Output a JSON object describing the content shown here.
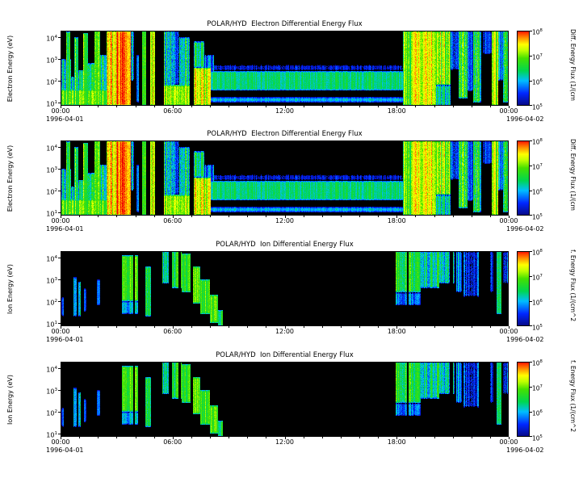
{
  "figure": {
    "panels": [
      {
        "title": "POLAR/HYD  Electron Differential Energy Flux",
        "ylabel": "Electron Energy (eV)",
        "y_ticks": [
          {
            "base": "10",
            "exp": "4"
          },
          {
            "base": "10",
            "exp": "3"
          },
          {
            "base": "10",
            "exp": "2"
          },
          {
            "base": "10",
            "exp": "1"
          }
        ],
        "x_ticks": [
          "00:00",
          "06:00",
          "12:00",
          "18:00",
          "00:00"
        ],
        "date_start": "1996-04-01",
        "date_end": "1996-04-02",
        "colorbar_ticks": [
          {
            "base": "10",
            "exp": "8"
          },
          {
            "base": "10",
            "exp": "7"
          },
          {
            "base": "10",
            "exp": "6"
          },
          {
            "base": "10",
            "exp": "5"
          }
        ],
        "colorbar_label": "Diff. Energy Flux (1/(cm",
        "chart_index": 0
      },
      {
        "title": "POLAR/HYD  Electron Differential Energy Flux",
        "ylabel": "Electron Energy (eV)",
        "y_ticks": [
          {
            "base": "10",
            "exp": "4"
          },
          {
            "base": "10",
            "exp": "3"
          },
          {
            "base": "10",
            "exp": "2"
          },
          {
            "base": "10",
            "exp": "1"
          }
        ],
        "x_ticks": [
          "00:00",
          "06:00",
          "12:00",
          "18:00",
          "00:00"
        ],
        "date_start": "1996-04-01",
        "date_end": "1996-04-02",
        "colorbar_ticks": [
          {
            "base": "10",
            "exp": "8"
          },
          {
            "base": "10",
            "exp": "7"
          },
          {
            "base": "10",
            "exp": "6"
          },
          {
            "base": "10",
            "exp": "5"
          }
        ],
        "colorbar_label": "Diff. Energy Flux (1/(cm",
        "chart_index": 0
      },
      {
        "title": "POLAR/HYD  Ion Differential Energy Flux",
        "ylabel": "Ion Energy (eV)",
        "y_ticks": [
          {
            "base": "10",
            "exp": "4"
          },
          {
            "base": "10",
            "exp": "3"
          },
          {
            "base": "10",
            "exp": "2"
          },
          {
            "base": "10",
            "exp": "1"
          }
        ],
        "x_ticks": [
          "00:00",
          "06:00",
          "12:00",
          "18:00",
          "00:00"
        ],
        "date_start": "1996-04-01",
        "date_end": "1996-04-02",
        "colorbar_ticks": [
          {
            "base": "10",
            "exp": "8"
          },
          {
            "base": "10",
            "exp": "7"
          },
          {
            "base": "10",
            "exp": "6"
          },
          {
            "base": "10",
            "exp": "5"
          }
        ],
        "colorbar_label": "f. Energy Flux (1/(cm^2",
        "chart_index": 1
      },
      {
        "title": "POLAR/HYD  Ion Differential Energy Flux",
        "ylabel": "Ion Energy (eV)",
        "y_ticks": [
          {
            "base": "10",
            "exp": "4"
          },
          {
            "base": "10",
            "exp": "3"
          },
          {
            "base": "10",
            "exp": "2"
          },
          {
            "base": "10",
            "exp": "1"
          }
        ],
        "x_ticks": [
          "00:00",
          "06:00",
          "12:00",
          "18:00",
          "00:00"
        ],
        "date_start": "1996-04-01",
        "date_end": "1996-04-02",
        "colorbar_ticks": [
          {
            "base": "10",
            "exp": "8"
          },
          {
            "base": "10",
            "exp": "7"
          },
          {
            "base": "10",
            "exp": "6"
          },
          {
            "base": "10",
            "exp": "5"
          }
        ],
        "colorbar_label": "f. Energy Flux (1/(cm^2",
        "chart_index": 1
      }
    ]
  },
  "colormap": {
    "below_min_color": "#000000",
    "stops": [
      {
        "v": 5.0,
        "color": "#080882"
      },
      {
        "v": 5.5,
        "color": "#0028ff"
      },
      {
        "v": 6.0,
        "color": "#00beff"
      },
      {
        "v": 6.4,
        "color": "#00d750"
      },
      {
        "v": 6.9,
        "color": "#46e100"
      },
      {
        "v": 7.2,
        "color": "#beff00"
      },
      {
        "v": 7.45,
        "color": "#ffff00"
      },
      {
        "v": 7.7,
        "color": "#ff9600"
      },
      {
        "v": 7.9,
        "color": "#ff3c00"
      },
      {
        "v": 8.0,
        "color": "#eb0000"
      }
    ]
  },
  "chart_data": [
    {
      "type": "heatmap",
      "title": "POLAR/HYD  Electron Differential Energy Flux",
      "x_axis": {
        "range_hours": [
          0,
          24
        ],
        "ticks": [
          "00:00",
          "06:00",
          "12:00",
          "18:00",
          "00:00"
        ],
        "date_start": "1996-04-01",
        "date_end": "1996-04-02"
      },
      "y_axis": {
        "label": "Electron Energy (eV)",
        "scale": "log",
        "range_log10_eV": [
          0.85,
          4.3
        ],
        "ticks_log10": [
          1,
          2,
          3,
          4
        ]
      },
      "z_axis": {
        "label": "Diff. Energy Flux (1/(cm",
        "scale": "log",
        "range_log10": [
          5,
          8
        ],
        "ticks_log10": [
          5,
          6,
          7,
          8
        ]
      },
      "background_log10_flux": 0,
      "feature_format": "t=[start_hr,end_hr], e=[log10_eV_min,log10_eV_max], v=log10_flux, n=noise_amplitude",
      "features": [
        {
          "t": [
            0.0,
            0.55
          ],
          "e": [
            1.05,
            3.0
          ],
          "v": 6.2,
          "n": 0.7
        },
        {
          "t": [
            0.0,
            2.45
          ],
          "e": [
            0.85,
            1.6
          ],
          "v": 6.9,
          "n": 0.5
        },
        {
          "t": [
            0.3,
            0.5
          ],
          "e": [
            1.0,
            4.25
          ],
          "v": 6.6,
          "n": 0.5
        },
        {
          "t": [
            0.55,
            0.75
          ],
          "e": [
            1.0,
            2.2
          ],
          "v": 6.0,
          "n": 0.6
        },
        {
          "t": [
            0.75,
            0.95
          ],
          "e": [
            1.0,
            4.0
          ],
          "v": 6.7,
          "n": 0.6
        },
        {
          "t": [
            0.95,
            1.2
          ],
          "e": [
            1.0,
            2.5
          ],
          "v": 6.2,
          "n": 0.6
        },
        {
          "t": [
            1.2,
            1.45
          ],
          "e": [
            1.0,
            4.2
          ],
          "v": 6.8,
          "n": 0.6
        },
        {
          "t": [
            1.45,
            1.8
          ],
          "e": [
            1.0,
            2.8
          ],
          "v": 6.3,
          "n": 0.7
        },
        {
          "t": [
            1.8,
            2.1
          ],
          "e": [
            1.0,
            4.3
          ],
          "v": 6.9,
          "n": 0.6
        },
        {
          "t": [
            2.1,
            2.45
          ],
          "e": [
            1.0,
            3.2
          ],
          "v": 6.4,
          "n": 0.7
        },
        {
          "t": [
            2.45,
            3.0
          ],
          "e": [
            0.85,
            4.3
          ],
          "v": 7.4,
          "n": 0.5
        },
        {
          "t": [
            3.0,
            3.75
          ],
          "e": [
            0.85,
            4.3
          ],
          "v": 7.8,
          "n": 0.35
        },
        {
          "t": [
            3.75,
            3.95
          ],
          "e": [
            2.0,
            4.3
          ],
          "v": 5.9,
          "n": 0.8
        },
        {
          "t": [
            4.05,
            4.18
          ],
          "e": [
            1.0,
            3.2
          ],
          "v": 5.7,
          "n": 0.5
        },
        {
          "t": [
            4.35,
            4.58
          ],
          "e": [
            0.85,
            4.3
          ],
          "v": 7.0,
          "n": 0.5
        },
        {
          "t": [
            4.78,
            5.05
          ],
          "e": [
            0.85,
            4.3
          ],
          "v": 7.3,
          "n": 0.45
        },
        {
          "t": [
            5.55,
            6.1
          ],
          "e": [
            0.85,
            4.3
          ],
          "v": 6.3,
          "n": 0.8
        },
        {
          "t": [
            5.55,
            6.9
          ],
          "e": [
            0.85,
            1.8
          ],
          "v": 7.2,
          "n": 0.5
        },
        {
          "t": [
            6.1,
            6.35
          ],
          "e": [
            1.8,
            4.3
          ],
          "v": 5.6,
          "n": 0.7
        },
        {
          "t": [
            6.35,
            6.9
          ],
          "e": [
            1.2,
            4.0
          ],
          "v": 6.4,
          "n": 0.8
        },
        {
          "t": [
            7.15,
            8.05
          ],
          "e": [
            0.85,
            2.6
          ],
          "v": 7.3,
          "n": 0.5
        },
        {
          "t": [
            7.15,
            7.7
          ],
          "e": [
            2.6,
            3.8
          ],
          "v": 6.3,
          "n": 0.6
        },
        {
          "t": [
            7.7,
            8.2
          ],
          "e": [
            2.0,
            3.2
          ],
          "v": 5.8,
          "n": 0.6
        },
        {
          "t": [
            8.05,
            18.35
          ],
          "e": [
            1.55,
            2.45
          ],
          "v": 6.35,
          "n": 0.3
        },
        {
          "t": [
            8.05,
            18.35
          ],
          "e": [
            1.0,
            1.25
          ],
          "v": 6.0,
          "n": 0.3
        },
        {
          "t": [
            8.05,
            18.35
          ],
          "e": [
            2.45,
            2.75
          ],
          "v": 5.3,
          "n": 0.4
        },
        {
          "t": [
            18.35,
            18.75
          ],
          "e": [
            0.85,
            4.3
          ],
          "v": 6.8,
          "n": 0.6
        },
        {
          "t": [
            18.75,
            20.1
          ],
          "e": [
            0.85,
            4.3
          ],
          "v": 7.4,
          "n": 0.5
        },
        {
          "t": [
            20.1,
            20.9
          ],
          "e": [
            1.8,
            4.3
          ],
          "v": 7.0,
          "n": 0.7
        },
        {
          "t": [
            20.1,
            20.9
          ],
          "e": [
            0.85,
            1.8
          ],
          "v": 6.2,
          "n": 0.6
        },
        {
          "t": [
            20.9,
            21.3
          ],
          "e": [
            2.5,
            4.3
          ],
          "v": 5.6,
          "n": 0.6
        },
        {
          "t": [
            21.3,
            21.8
          ],
          "e": [
            1.2,
            4.3
          ],
          "v": 6.6,
          "n": 0.7
        },
        {
          "t": [
            21.8,
            22.1
          ],
          "e": [
            1.5,
            4.3
          ],
          "v": 5.7,
          "n": 0.6
        },
        {
          "t": [
            22.1,
            22.55
          ],
          "e": [
            1.0,
            4.3
          ],
          "v": 6.5,
          "n": 0.8
        },
        {
          "t": [
            22.6,
            23.1
          ],
          "e": [
            3.2,
            4.3
          ],
          "v": 5.4,
          "n": 0.5
        },
        {
          "t": [
            23.1,
            23.45
          ],
          "e": [
            0.85,
            4.3
          ],
          "v": 7.1,
          "n": 0.5
        },
        {
          "t": [
            23.45,
            23.7
          ],
          "e": [
            2.0,
            4.3
          ],
          "v": 5.8,
          "n": 0.6
        },
        {
          "t": [
            23.7,
            24.0
          ],
          "e": [
            1.0,
            4.3
          ],
          "v": 6.3,
          "n": 0.8
        }
      ],
      "gaps": []
    },
    {
      "type": "heatmap",
      "title": "POLAR/HYD  Ion Differential Energy Flux",
      "x_axis": {
        "range_hours": [
          0,
          24
        ],
        "ticks": [
          "00:00",
          "06:00",
          "12:00",
          "18:00",
          "00:00"
        ],
        "date_start": "1996-04-01",
        "date_end": "1996-04-02"
      },
      "y_axis": {
        "label": "Ion Energy (eV)",
        "scale": "log",
        "range_log10_eV": [
          0.85,
          4.3
        ],
        "ticks_log10": [
          1,
          2,
          3,
          4
        ]
      },
      "z_axis": {
        "label": "f. Energy Flux (1/(cm^2",
        "scale": "log",
        "range_log10": [
          5,
          8
        ],
        "ticks_log10": [
          5,
          6,
          7,
          8
        ]
      },
      "background_log10_flux": 0,
      "feature_format": "t=[start_hr,end_hr], e=[log10_eV_min,log10_eV_max], v=log10_flux, n=noise_amplitude",
      "features": [
        {
          "t": [
            0.05,
            0.18
          ],
          "e": [
            1.3,
            2.2
          ],
          "v": 5.6,
          "n": 0.4
        },
        {
          "t": [
            0.7,
            0.85
          ],
          "e": [
            1.3,
            3.1
          ],
          "v": 6.0,
          "n": 0.5
        },
        {
          "t": [
            0.95,
            1.1
          ],
          "e": [
            1.3,
            2.9
          ],
          "v": 5.9,
          "n": 0.5
        },
        {
          "t": [
            1.25,
            1.38
          ],
          "e": [
            1.5,
            2.6
          ],
          "v": 5.6,
          "n": 0.4
        },
        {
          "t": [
            1.95,
            2.1
          ],
          "e": [
            1.8,
            3.0
          ],
          "v": 5.5,
          "n": 0.4
        },
        {
          "t": [
            3.3,
            4.15
          ],
          "e": [
            2.0,
            4.1
          ],
          "v": 6.8,
          "n": 0.4
        },
        {
          "t": [
            3.3,
            4.15
          ],
          "e": [
            1.4,
            2.0
          ],
          "v": 6.0,
          "n": 0.5
        },
        {
          "t": [
            4.55,
            4.85
          ],
          "e": [
            1.3,
            3.6
          ],
          "v": 6.4,
          "n": 0.5
        },
        {
          "t": [
            5.45,
            5.8
          ],
          "e": [
            2.8,
            4.3
          ],
          "v": 6.3,
          "n": 0.5
        },
        {
          "t": [
            5.95,
            6.5
          ],
          "e": [
            2.6,
            4.3
          ],
          "v": 6.5,
          "n": 0.5
        },
        {
          "t": [
            6.5,
            7.0
          ],
          "e": [
            2.4,
            4.2
          ],
          "v": 6.7,
          "n": 0.4
        },
        {
          "t": [
            7.0,
            7.5
          ],
          "e": [
            1.9,
            3.6
          ],
          "v": 6.8,
          "n": 0.4
        },
        {
          "t": [
            7.5,
            8.0
          ],
          "e": [
            1.4,
            3.0
          ],
          "v": 6.8,
          "n": 0.4
        },
        {
          "t": [
            8.0,
            8.45
          ],
          "e": [
            1.0,
            2.3
          ],
          "v": 6.8,
          "n": 0.4
        },
        {
          "t": [
            8.45,
            8.7
          ],
          "e": [
            0.85,
            1.6
          ],
          "v": 6.5,
          "n": 0.4
        },
        {
          "t": [
            17.95,
            19.3
          ],
          "e": [
            2.4,
            4.3
          ],
          "v": 6.6,
          "n": 0.5
        },
        {
          "t": [
            17.95,
            19.3
          ],
          "e": [
            1.8,
            2.4
          ],
          "v": 5.8,
          "n": 0.5
        },
        {
          "t": [
            19.3,
            20.3
          ],
          "e": [
            2.6,
            4.3
          ],
          "v": 6.3,
          "n": 0.6
        },
        {
          "t": [
            20.3,
            21.1
          ],
          "e": [
            2.8,
            4.3
          ],
          "v": 6.0,
          "n": 0.7
        },
        {
          "t": [
            21.2,
            21.5
          ],
          "e": [
            2.4,
            4.3
          ],
          "v": 5.7,
          "n": 0.5
        },
        {
          "t": [
            21.6,
            22.4
          ],
          "e": [
            2.2,
            4.3
          ],
          "v": 5.5,
          "n": 0.6
        },
        {
          "t": [
            23.0,
            23.2
          ],
          "e": [
            2.4,
            4.3
          ],
          "v": 5.5,
          "n": 0.5
        },
        {
          "t": [
            23.35,
            23.6
          ],
          "e": [
            1.4,
            4.3
          ],
          "v": 6.4,
          "n": 0.5
        },
        {
          "t": [
            23.7,
            24.0
          ],
          "e": [
            2.8,
            4.3
          ],
          "v": 5.6,
          "n": 0.6
        }
      ],
      "gaps": [
        {
          "t": [
            3.88,
            3.96
          ],
          "e": [
            0.85,
            4.3
          ]
        },
        {
          "t": [
            5.8,
            5.95
          ],
          "e": [
            0.85,
            4.3
          ]
        },
        {
          "t": [
            6.32,
            6.44
          ],
          "e": [
            0.85,
            4.3
          ]
        },
        {
          "t": [
            6.98,
            7.08
          ],
          "e": [
            0.85,
            4.3
          ]
        },
        {
          "t": [
            18.55,
            18.62
          ],
          "e": [
            0.85,
            4.3
          ]
        },
        {
          "t": [
            20.85,
            21.0
          ],
          "e": [
            0.85,
            4.3
          ]
        }
      ]
    }
  ]
}
